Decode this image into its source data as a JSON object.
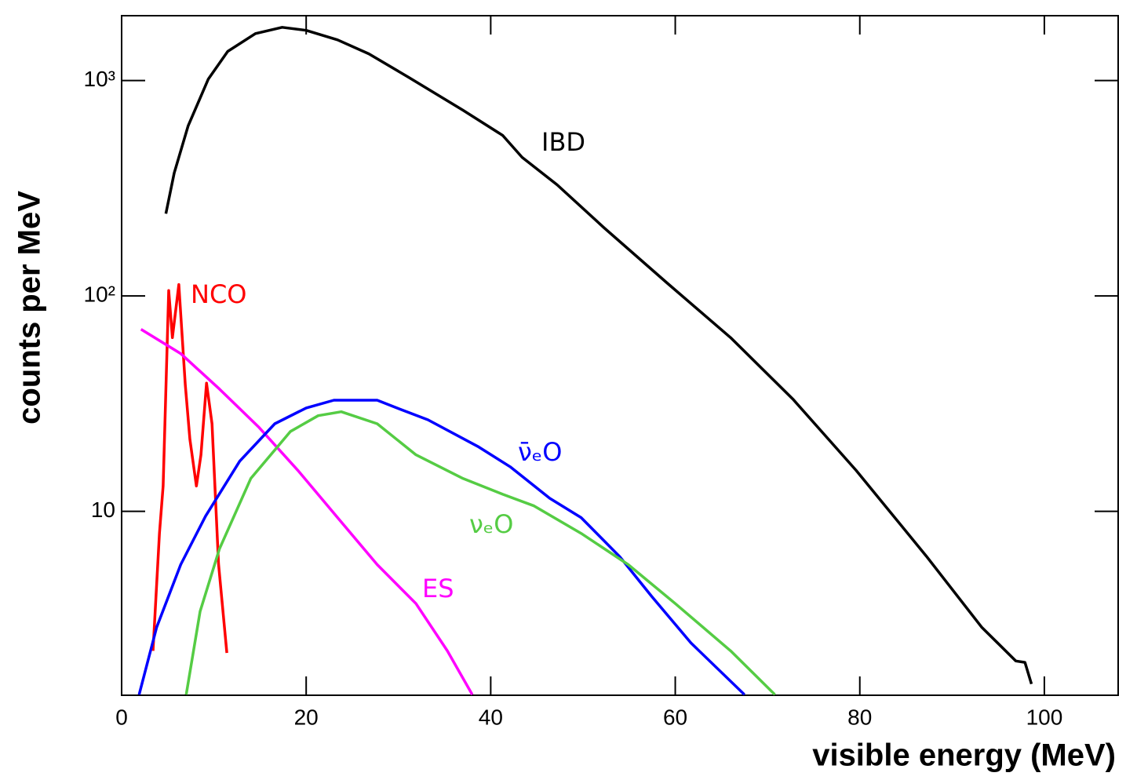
{
  "chart_data": {
    "type": "line",
    "xlabel": "visible energy (MeV)",
    "ylabel": "counts per MeV",
    "xlim": [
      0,
      108
    ],
    "xticks": [
      0,
      20,
      40,
      60,
      80,
      100
    ],
    "ylim": [
      1.4,
      2000
    ],
    "log_y": true,
    "yticks": [
      10,
      {
        "value": 100,
        "label": "10²"
      },
      {
        "value": 1000,
        "label": "10³"
      }
    ],
    "grid": false,
    "series": [
      {
        "name": "IBD",
        "color": "#000000",
        "x": [
          4.8,
          5.7,
          7.2,
          9.4,
          11.5,
          14.5,
          17.4,
          20,
          23.4,
          26.8,
          31.1,
          37,
          41.3,
          43.4,
          47.2,
          52.3,
          59.1,
          66,
          72.8,
          79.6,
          87.2,
          93.2,
          96.9,
          97.9,
          98.6
        ],
        "values": [
          241,
          372,
          615,
          1016,
          1365,
          1652,
          1766,
          1710,
          1545,
          1330,
          1035,
          728,
          556,
          440,
          328,
          207,
          115,
          64,
          33,
          15.5,
          6.2,
          2.9,
          2.02,
          1.99,
          1.58
        ]
      },
      {
        "name": "NCO",
        "color": "#ff0000",
        "x": [
          3.4,
          4.1,
          4.5,
          5.1,
          5.5,
          6.2,
          6.9,
          7.4,
          8.1,
          8.6,
          9.2,
          9.8,
          10.5,
          11.4
        ],
        "values": [
          2.25,
          7.9,
          13.1,
          106,
          64,
          113,
          38.8,
          21.6,
          13.1,
          18.3,
          39.4,
          25.5,
          5.7,
          2.2
        ]
      },
      {
        "name": "ES",
        "color": "#ff00ff",
        "x": [
          2.1,
          6.4,
          10.6,
          14.9,
          19.1,
          23.4,
          27.7,
          31.9,
          35.3,
          38
        ],
        "values": [
          70,
          54,
          37,
          24.5,
          15.5,
          9.35,
          5.66,
          3.73,
          2.25,
          1.41
        ]
      },
      {
        "name": "ν̄ₑO",
        "color": "#0000ff",
        "x": [
          1.9,
          3.8,
          6.4,
          9.1,
          12.8,
          16.6,
          20,
          23,
          27.7,
          29.4,
          33.2,
          38.7,
          42.1,
          46.4,
          49.8,
          54,
          57.4,
          61.7,
          67.5
        ],
        "values": [
          1.41,
          2.9,
          5.66,
          9.5,
          17.1,
          25.5,
          30.2,
          32.8,
          32.8,
          30.7,
          26.6,
          19.9,
          16.1,
          11.5,
          9.35,
          6.15,
          4.05,
          2.45,
          1.41
        ]
      },
      {
        "name": "νₑO",
        "color": "#55cc44",
        "x": [
          7,
          8.5,
          10.6,
          14,
          18.3,
          21.3,
          23.8,
          27.7,
          31.9,
          37,
          41.3,
          44.7,
          49.8,
          54.9,
          60,
          66,
          70.8
        ],
        "values": [
          1.41,
          3.43,
          6.68,
          14.2,
          23.5,
          27.8,
          29,
          25.5,
          18.3,
          14.2,
          12,
          10.6,
          7.9,
          5.66,
          3.73,
          2.25,
          1.41
        ]
      }
    ]
  }
}
